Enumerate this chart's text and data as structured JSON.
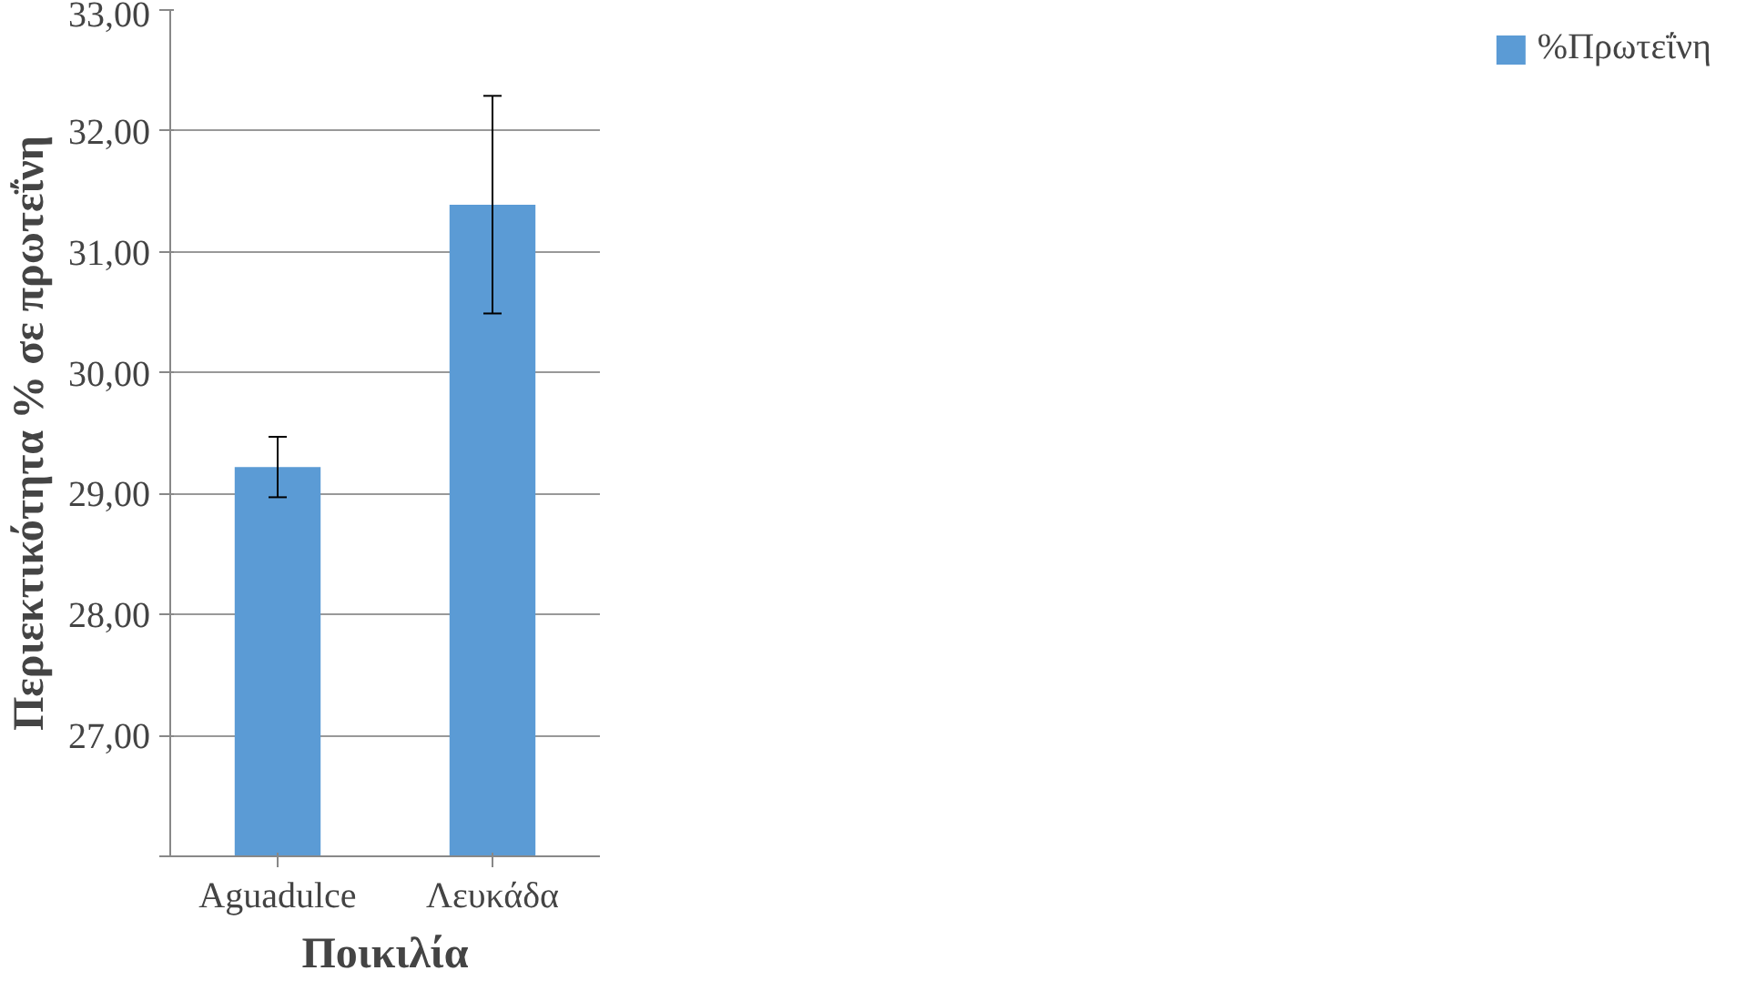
{
  "chart_data": {
    "type": "bar",
    "xlabel": "Ποικιλία",
    "ylabel": "Περιεκτικότητα % σε πρωτεΐνη",
    "categories": [
      "Aguadulce",
      "Λευκάδα"
    ],
    "series": [
      {
        "name": "%Πρωτεΐνη",
        "color": "#5b9bd5",
        "values": [
          29.22,
          31.39
        ],
        "errors": [
          0.25,
          0.9
        ]
      }
    ],
    "ylim": [
      26,
      33
    ],
    "yticks": [
      {
        "value": 26,
        "label": null
      },
      {
        "value": 27,
        "label": "27,00"
      },
      {
        "value": 28,
        "label": "28,00"
      },
      {
        "value": 29,
        "label": "29,00"
      },
      {
        "value": 30,
        "label": "30,00"
      },
      {
        "value": 31,
        "label": "31,00"
      },
      {
        "value": 32,
        "label": "32,00"
      },
      {
        "value": 33,
        "label": "33,00"
      }
    ],
    "grid": "y",
    "legend": "right"
  }
}
